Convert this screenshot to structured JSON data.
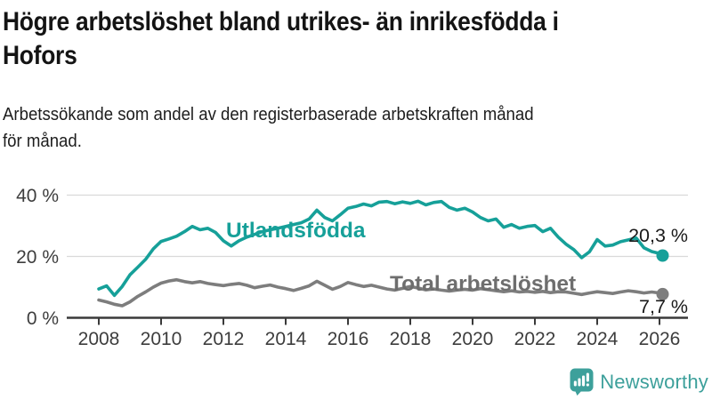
{
  "header": {
    "title": "Högre arbetslöshet bland utrikes- än inrikesfödda i Hofors",
    "title_lines": [
      "Högre arbetslöshet bland utrikes- än inrikesfödda i",
      "Hofors"
    ],
    "subtitle": "Arbetssökande som andel av den registerbaserade arbetskraften månad för månad.",
    "subtitle_lines": [
      "Arbetssökande som andel av den registerbaserade arbetskraften månad",
      "för månad."
    ]
  },
  "chart_data": {
    "type": "line",
    "title": "Högre arbetslöshet bland utrikes- än inrikesfödda i Hofors",
    "subtitle": "Arbetssökande som andel av den registerbaserade arbetskraften månad för månad.",
    "xlabel": "",
    "ylabel": "",
    "xlim": [
      2007,
      2026.9
    ],
    "ylim": [
      0,
      42
    ],
    "grid": true,
    "legend_position": "inline-labels",
    "x_axis": {
      "ticks": [
        2008,
        2010,
        2012,
        2014,
        2016,
        2018,
        2020,
        2022,
        2024,
        2026
      ],
      "labels": [
        "2008",
        "2010",
        "2012",
        "2014",
        "2016",
        "2018",
        "2020",
        "2022",
        "2024",
        "2026"
      ]
    },
    "y_axis": {
      "ticks": [
        0,
        20,
        40
      ],
      "labels": [
        "0 %",
        "20 %",
        "40 %"
      ]
    },
    "x": [
      2008,
      2008.25,
      2008.5,
      2008.75,
      2009,
      2009.25,
      2009.5,
      2009.75,
      2010,
      2010.25,
      2010.5,
      2010.75,
      2011,
      2011.25,
      2011.5,
      2011.75,
      2012,
      2012.25,
      2012.5,
      2012.75,
      2013,
      2013.25,
      2013.5,
      2013.75,
      2014,
      2014.25,
      2014.5,
      2014.75,
      2015,
      2015.25,
      2015.5,
      2015.75,
      2016,
      2016.25,
      2016.5,
      2016.75,
      2017,
      2017.25,
      2017.5,
      2017.75,
      2018,
      2018.25,
      2018.5,
      2018.75,
      2019,
      2019.25,
      2019.5,
      2019.75,
      2020,
      2020.25,
      2020.5,
      2020.75,
      2021,
      2021.25,
      2021.5,
      2021.75,
      2022,
      2022.25,
      2022.5,
      2022.75,
      2023,
      2023.25,
      2023.5,
      2023.75,
      2024,
      2024.25,
      2024.5,
      2024.75,
      2025,
      2025.25,
      2025.5,
      2025.75,
      2026,
      2026.1
    ],
    "series": [
      {
        "id": "utlandsfodda",
        "name": "Utlandsfödda",
        "color": "#16a099",
        "label_color": "#16a099",
        "end_label": "20,3 %",
        "end_value": 20.3,
        "values": [
          9.4,
          10.4,
          7.3,
          10.2,
          14,
          16.5,
          19,
          22.5,
          24.9,
          25.7,
          26.6,
          28.1,
          29.8,
          28.7,
          29.2,
          27.8,
          25.1,
          23.4,
          25.1,
          26.3,
          27.2,
          28.1,
          28.7,
          29.2,
          29.8,
          30.4,
          31,
          32.2,
          35.1,
          32.7,
          31.6,
          33.6,
          35.7,
          36.3,
          37.1,
          36.5,
          37.7,
          37.9,
          37.2,
          37.8,
          37.3,
          38,
          36.8,
          37.6,
          37.9,
          36,
          35.1,
          35.7,
          34.5,
          32.7,
          31.6,
          32.2,
          29.5,
          30.4,
          29.2,
          29.8,
          30.1,
          28.1,
          29.2,
          26.3,
          24,
          22.2,
          19.6,
          21.5,
          25.5,
          23.4,
          23.7,
          24.8,
          25.4,
          26,
          22.8,
          21.6,
          21,
          20.3
        ]
      },
      {
        "id": "total-arbetsloshet",
        "name": "Total arbetslöshet",
        "color": "#7d7d7d",
        "label_color": "#6e6e6e",
        "end_label": "7,7 %",
        "end_value": 7.7,
        "values": [
          5.8,
          5.2,
          4.4,
          3.9,
          5.2,
          7,
          8.4,
          10,
          11.3,
          12,
          12.4,
          11.8,
          11.4,
          11.8,
          11.2,
          10.8,
          10.5,
          10.9,
          11.2,
          10.6,
          9.8,
          10.3,
          10.7,
          10,
          9.5,
          8.9,
          9.6,
          10.4,
          11.9,
          10.6,
          9.3,
          10.2,
          11.5,
          10.8,
          10.2,
          10.6,
          10,
          9.4,
          9,
          9.6,
          10.2,
          9.7,
          9.1,
          9.4,
          9,
          8.7,
          9,
          9.3,
          9,
          9.5,
          9.2,
          8.8,
          8.5,
          8.8,
          8.4,
          8.6,
          8.3,
          8.6,
          8.2,
          8.5,
          8.4,
          8,
          7.6,
          8.1,
          8.5,
          8.2,
          7.9,
          8.4,
          8.8,
          8.5,
          8.1,
          8.4,
          8.1,
          7.7
        ]
      }
    ]
  },
  "colors": {
    "accent_teal": "#16a099",
    "series_gray": "#7d7d7d",
    "gridline": "#d9d9d9",
    "axis": "#3a3a3a",
    "text_dark": "#141414",
    "brand_teal": "#3da09b"
  },
  "branding": {
    "logo_text": "Newsworthy",
    "logo_icon": "bar-chart-speech-bubble-icon"
  }
}
